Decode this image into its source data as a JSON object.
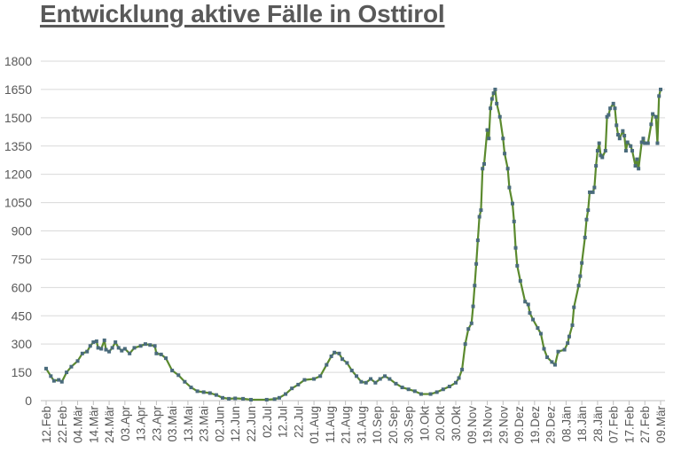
{
  "chart_data": {
    "type": "line",
    "title": "Entwicklung aktive Fälle in Osttirol",
    "xlabel": "",
    "ylabel": "",
    "ylim": [
      0,
      1800
    ],
    "yticks": [
      0,
      150,
      300,
      450,
      600,
      750,
      900,
      1050,
      1200,
      1350,
      1500,
      1650,
      1800
    ],
    "xticks": [
      "12.Feb",
      "22.Feb",
      "04.Mär",
      "14.Mär",
      "24.Mär",
      "03.Apr",
      "13.Apr",
      "23.Apr",
      "03.Mai",
      "13.Mai",
      "23.Mai",
      "02.Jun",
      "12.Jun",
      "22.Jun",
      "02.Jul",
      "12.Jul",
      "22.Jul",
      "01.Aug",
      "11.Aug",
      "21.Aug",
      "31.Aug",
      "10.Sep",
      "20.Sep",
      "30.Sep",
      "10.Okt",
      "20.Okt",
      "30.Okt",
      "09.Nov",
      "19.Nov",
      "29.Nov",
      "09.Dez",
      "19.Dez",
      "29.Dez",
      "08.Jän",
      "18.Jän",
      "28.Jän",
      "07.Feb",
      "17.Feb",
      "27.Feb",
      "09.Mär"
    ],
    "grid": true,
    "legend": "none",
    "colors": {
      "line": "#5b8a2e",
      "marker": "#4a6b7c",
      "grid": "#d9d9d9",
      "text": "#595959"
    },
    "series": [
      {
        "x": [
          "12.02",
          "15.02",
          "17.02",
          "20.02",
          "22.02",
          "25.02",
          "28.02",
          "04.03",
          "07.03",
          "10.03",
          "12.03",
          "14.03",
          "16.03",
          "17.03",
          "19.03",
          "21.03",
          "22.03",
          "24.03",
          "26.03",
          "28.03",
          "30.03",
          "01.04",
          "03.04",
          "06.04",
          "09.04",
          "13.04",
          "16.04",
          "19.04",
          "22.04",
          "23.04",
          "26.04",
          "29.04",
          "03.05",
          "07.05",
          "11.05",
          "15.05",
          "19.05",
          "23.05",
          "27.05",
          "31.05",
          "04.06",
          "08.06",
          "12.06",
          "17.06",
          "22.06",
          "02.07",
          "07.07",
          "10.07",
          "14.07",
          "18.07",
          "22.07",
          "26.07",
          "01.08",
          "05.08",
          "09.08",
          "12.08",
          "14.08",
          "17.08",
          "19.08",
          "22.08",
          "25.08",
          "28.08",
          "31.08",
          "03.09",
          "06.09",
          "09.09",
          "12.09",
          "15.09",
          "18.09",
          "22.09",
          "26.09",
          "30.09",
          "04.10",
          "08.10",
          "14.10",
          "18.10",
          "22.10",
          "26.10",
          "30.10",
          "01.11",
          "03.11",
          "05.11",
          "07.11",
          "09.11",
          "10.11",
          "11.11",
          "12.11",
          "13.11",
          "14.11",
          "15.11",
          "16.11",
          "17.11",
          "19.11",
          "20.11",
          "21.11",
          "22.11",
          "23.11",
          "24.11",
          "25.11",
          "27.11",
          "29.11",
          "30.11",
          "02.12",
          "03.12",
          "05.12",
          "06.12",
          "07.12",
          "08.12",
          "10.12",
          "13.12",
          "15.12",
          "16.12",
          "18.12",
          "21.12",
          "23.12",
          "25.12",
          "27.12",
          "30.12",
          "01.01",
          "03.01",
          "07.01",
          "09.01",
          "10.01",
          "12.01",
          "13.01",
          "16.01",
          "17.01",
          "18.01",
          "20.01",
          "21.01",
          "22.01",
          "23.01",
          "25.01",
          "26.01",
          "27.01",
          "28.01",
          "29.01",
          "30.01",
          "31.01",
          "02.02",
          "03.02",
          "04.02",
          "05.02",
          "07.02",
          "08.02",
          "09.02",
          "10.02",
          "11.02",
          "13.02",
          "14.02",
          "15.02",
          "16.02",
          "18.02",
          "19.02",
          "21.02",
          "22.02",
          "23.02",
          "25.02",
          "26.02",
          "27.02",
          "01.03",
          "03.03",
          "04.03",
          "06.03",
          "07.03",
          "08.03",
          "09.03"
        ],
        "y": [
          170,
          130,
          105,
          110,
          100,
          150,
          180,
          210,
          250,
          260,
          290,
          310,
          315,
          280,
          275,
          320,
          270,
          260,
          280,
          310,
          280,
          265,
          275,
          250,
          280,
          290,
          300,
          295,
          290,
          250,
          245,
          225,
          160,
          135,
          100,
          70,
          50,
          45,
          40,
          30,
          15,
          10,
          12,
          10,
          5,
          5,
          8,
          15,
          35,
          65,
          85,
          110,
          115,
          130,
          190,
          235,
          255,
          250,
          220,
          200,
          160,
          130,
          100,
          95,
          115,
          95,
          115,
          130,
          115,
          90,
          70,
          60,
          50,
          35,
          35,
          45,
          60,
          75,
          95,
          120,
          165,
          300,
          380,
          410,
          500,
          610,
          725,
          850,
          975,
          1010,
          1230,
          1255,
          1435,
          1390,
          1550,
          1600,
          1630,
          1650,
          1575,
          1505,
          1390,
          1310,
          1230,
          1130,
          1045,
          950,
          810,
          715,
          635,
          525,
          510,
          465,
          430,
          385,
          355,
          275,
          230,
          205,
          190,
          260,
          270,
          305,
          340,
          400,
          495,
          610,
          660,
          730,
          865,
          960,
          1010,
          1105,
          1105,
          1130,
          1245,
          1325,
          1365,
          1300,
          1290,
          1325,
          1505,
          1515,
          1550,
          1575,
          1550,
          1460,
          1410,
          1390,
          1430,
          1405,
          1325,
          1370,
          1350,
          1325,
          1245,
          1280,
          1230,
          1370,
          1390,
          1365,
          1365,
          1465,
          1520,
          1505,
          1365,
          1615,
          1650
        ]
      }
    ]
  }
}
